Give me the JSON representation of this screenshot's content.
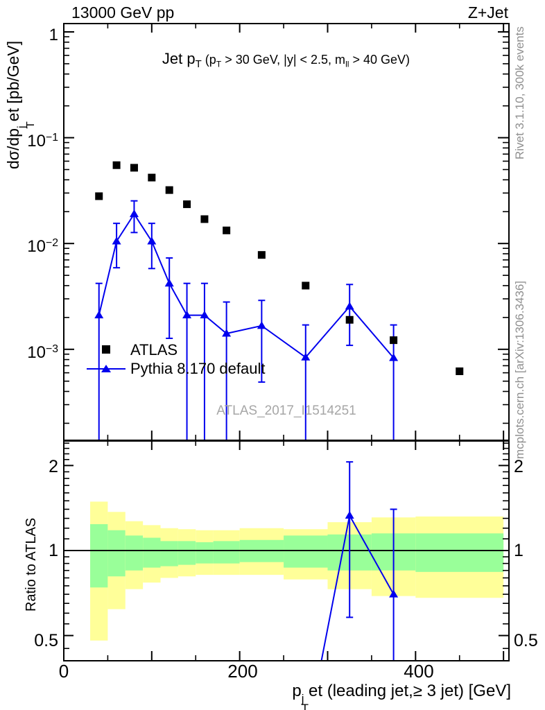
{
  "header": {
    "left": "13000 GeV pp",
    "right": "Z+Jet"
  },
  "titles": {
    "plot_main": "Jet p",
    "plot_main_sub": "T",
    "plot_cuts_1": " (p",
    "plot_cuts_1_sub": "T",
    "plot_cuts_2": " > 30 GeV, |y| < 2.5, m",
    "plot_cuts_2_sub": "ll",
    "plot_cuts_3": " > 40 GeV)",
    "y_axis_1": "dσ/dp",
    "y_axis_sup": "j",
    "y_axis_sub": "T",
    "y_axis_2": "et [pb/GeV]",
    "x_axis_1": "p",
    "x_axis_sup": "j",
    "x_axis_sub": "T",
    "x_axis_2": "et (leading jet,≥ 3 jet) [GeV]",
    "ratio_y_axis": "Ratio to ATLAS"
  },
  "side_notes": {
    "top": "Rivet 3.1.10,  300k events",
    "bottom": "mcplots.cern.ch [arXiv:1306.3436]"
  },
  "watermark": "ATLAS_2017_I1514251",
  "legend": {
    "atlas_label": "ATLAS",
    "pythia_label": "Pythia 8.170 default"
  },
  "ticks": {
    "main_y": [
      {
        "b": "1",
        "e": ""
      },
      {
        "b": "10",
        "e": "−1"
      },
      {
        "b": "10",
        "e": "−2"
      },
      {
        "b": "10",
        "e": "−3"
      }
    ],
    "x": [
      "0",
      "200",
      "400"
    ],
    "ratio_y_left": [
      "2",
      "1",
      "0.5"
    ],
    "ratio_y_right": [
      "2",
      "1",
      "0.5"
    ]
  },
  "colors": {
    "pythia_blue": "#0000ee",
    "atlas_black": "#000000",
    "band_yellow": "#ffff99",
    "band_green": "#99ff99",
    "gray_text": "#8f8f8f"
  },
  "chart_data": {
    "type": "scatter",
    "title": "Jet pT (pT > 30 GeV, |y| < 2.5, mll > 40 GeV)",
    "xlabel": "pTjet (leading jet, >= 3 jet) [GeV]",
    "ylabel": "dsigma/dpTjet [pb/GeV]",
    "x_bin_edges_gev": [
      30,
      50,
      70,
      90,
      110,
      130,
      150,
      170,
      200,
      250,
      300,
      350,
      400,
      500
    ],
    "main_panel": {
      "y_scale": "log",
      "y_range": [
        0.00014,
        1.2
      ],
      "x_range_gev": [
        0,
        505
      ],
      "series": [
        {
          "name": "ATLAS",
          "marker": "filled-square",
          "color": "#000000",
          "x": [
            40,
            60,
            80,
            100,
            120,
            140,
            160,
            185,
            225,
            275,
            325,
            375,
            450
          ],
          "y": [
            0.028,
            0.055,
            0.052,
            0.042,
            0.032,
            0.0235,
            0.017,
            0.0133,
            0.0078,
            0.004,
            0.0019,
            0.00122,
            0.00062
          ]
        },
        {
          "name": "Pythia 8.170 default",
          "marker": "filled-triangle",
          "color": "#0000ee",
          "line": true,
          "x": [
            40,
            60,
            80,
            100,
            120,
            140,
            160,
            185,
            225,
            275,
            325,
            375
          ],
          "y": [
            0.0021,
            0.0105,
            0.019,
            0.0105,
            0.0042,
            0.0021,
            0.0021,
            0.00141,
            0.00167,
            0.00084,
            0.00254,
            0.00083
          ],
          "y_err_hi": [
            0.0042,
            0.0155,
            0.0253,
            0.0155,
            0.0073,
            0.0042,
            0.0042,
            0.0028,
            0.0029,
            0.0017,
            0.0041,
            0.0017
          ],
          "y_err_lo": [
            null,
            0.0059,
            0.0127,
            0.0058,
            0.00127,
            null,
            null,
            null,
            0.00049,
            null,
            0.00109,
            null
          ]
        }
      ]
    },
    "ratio_panel": {
      "label": "Ratio to ATLAS",
      "y_scale": "log",
      "y_range": [
        0.41,
        2.45
      ],
      "line_points": [
        {
          "x": 275,
          "ratio": 0.21
        },
        {
          "x": 325,
          "ratio": 1.33
        },
        {
          "x": 375,
          "ratio": 0.7
        }
      ],
      "markers": [
        {
          "x": 325,
          "ratio": 1.33,
          "err_lo": 0.58,
          "err_hi": 2.06
        },
        {
          "x": 375,
          "ratio": 0.7,
          "err_lo": null,
          "err_hi": 1.4
        }
      ],
      "bands": [
        {
          "gev": [
            30,
            50
          ],
          "yellow": [
            0.48,
            1.49
          ],
          "green": [
            0.74,
            1.24
          ]
        },
        {
          "gev": [
            50,
            70
          ],
          "yellow": [
            0.62,
            1.37
          ],
          "green": [
            0.81,
            1.18
          ]
        },
        {
          "gev": [
            70,
            90
          ],
          "yellow": [
            0.73,
            1.27
          ],
          "green": [
            0.85,
            1.13
          ]
        },
        {
          "gev": [
            90,
            110
          ],
          "yellow": [
            0.77,
            1.23
          ],
          "green": [
            0.87,
            1.11
          ]
        },
        {
          "gev": [
            110,
            130
          ],
          "yellow": [
            0.8,
            1.2
          ],
          "green": [
            0.88,
            1.08
          ]
        },
        {
          "gev": [
            130,
            150
          ],
          "yellow": [
            0.81,
            1.19
          ],
          "green": [
            0.89,
            1.08
          ]
        },
        {
          "gev": [
            150,
            170
          ],
          "yellow": [
            0.82,
            1.18
          ],
          "green": [
            0.9,
            1.07
          ]
        },
        {
          "gev": [
            170,
            200
          ],
          "yellow": [
            0.82,
            1.18
          ],
          "green": [
            0.9,
            1.08
          ]
        },
        {
          "gev": [
            200,
            250
          ],
          "yellow": [
            0.82,
            1.2
          ],
          "green": [
            0.91,
            1.09
          ]
        },
        {
          "gev": [
            250,
            300
          ],
          "yellow": [
            0.79,
            1.19
          ],
          "green": [
            0.87,
            1.13
          ]
        },
        {
          "gev": [
            300,
            350
          ],
          "yellow": [
            0.73,
            1.26
          ],
          "green": [
            0.85,
            1.14
          ]
        },
        {
          "gev": [
            350,
            400
          ],
          "yellow": [
            0.69,
            1.31
          ],
          "green": [
            0.85,
            1.15
          ]
        },
        {
          "gev": [
            400,
            500
          ],
          "yellow": [
            0.68,
            1.32
          ],
          "green": [
            0.84,
            1.15
          ]
        }
      ]
    }
  }
}
